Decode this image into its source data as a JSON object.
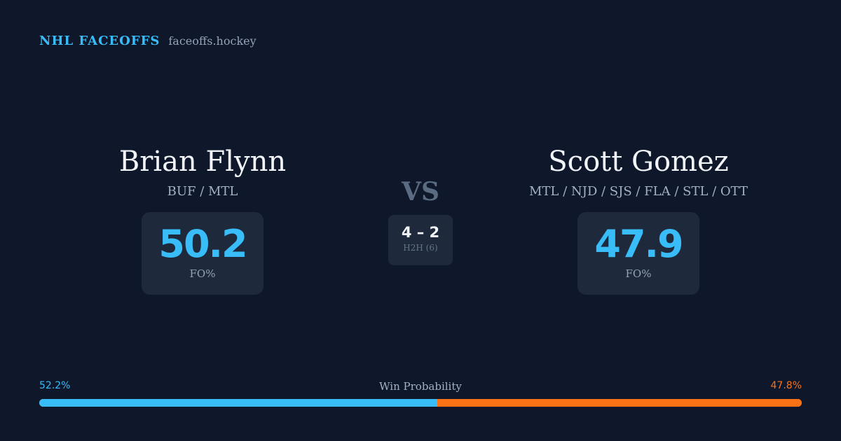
{
  "brand": {
    "name": "NHL FACEOFFS",
    "url": "faceoffs.hockey"
  },
  "players": [
    {
      "name": "Brian Flynn",
      "teams": "BUF / MTL",
      "fo_pct": "50.2",
      "fo_label": "FO%"
    },
    {
      "name": "Scott Gomez",
      "teams": "MTL / NJD / SJS / FLA / STL / OTT",
      "fo_pct": "47.9",
      "fo_label": "FO%"
    }
  ],
  "versus": {
    "label": "VS",
    "h2h_score": "4 – 2",
    "h2h_label": "H2H (6)"
  },
  "win_probability": {
    "title": "Win Probability",
    "left_label": "52.2%",
    "right_label": "47.8%",
    "left_fraction": 0.522,
    "left_color": "#38bdf8",
    "right_color": "#f97316"
  }
}
